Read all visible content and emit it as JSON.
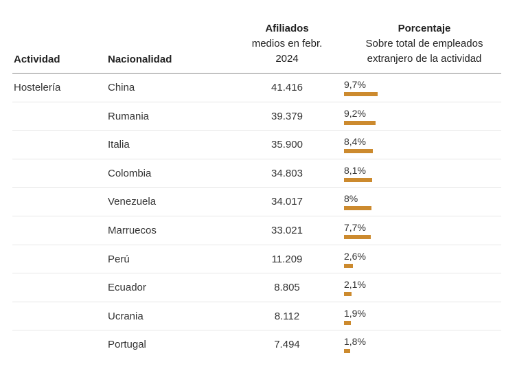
{
  "headers": {
    "actividad": "Actividad",
    "nacionalidad": "Nacionalidad",
    "afiliados_title": "Afiliados",
    "afiliados_line2": "medios en febr.",
    "afiliados_line3": "2024",
    "porcentaje_title": "Porcentaje",
    "porcentaje_line2": "Sobre total de empleados",
    "porcentaje_line3": "extranjero de la actividad"
  },
  "colors": {
    "bar": "#cc8a2e",
    "header_rule": "#8a8a8a",
    "row_rule": "#e6e6e6"
  },
  "chart_data": {
    "type": "table",
    "columns": [
      "Actividad",
      "Nacionalidad",
      "Afiliados medios en febr. 2024",
      "Porcentaje Sobre total de empleados extranjero de la actividad"
    ],
    "rows": [
      {
        "actividad": "Hostelería",
        "nacionalidad": "China",
        "afiliados": "41.416",
        "porcentaje": "9,7%",
        "value": 9.7
      },
      {
        "actividad": "",
        "nacionalidad": "Rumania",
        "afiliados": "39.379",
        "porcentaje": "9,2%",
        "value": 9.2
      },
      {
        "actividad": "",
        "nacionalidad": "Italia",
        "afiliados": "35.900",
        "porcentaje": "8,4%",
        "value": 8.4
      },
      {
        "actividad": "",
        "nacionalidad": "Colombia",
        "afiliados": "34.803",
        "porcentaje": "8,1%",
        "value": 8.1
      },
      {
        "actividad": "",
        "nacionalidad": "Venezuela",
        "afiliados": "34.017",
        "porcentaje": "8%",
        "value": 8.0
      },
      {
        "actividad": "",
        "nacionalidad": "Marruecos",
        "afiliados": "33.021",
        "porcentaje": "7,7%",
        "value": 7.7
      },
      {
        "actividad": "",
        "nacionalidad": "Perú",
        "afiliados": "11.209",
        "porcentaje": "2,6%",
        "value": 2.6
      },
      {
        "actividad": "",
        "nacionalidad": "Ecuador",
        "afiliados": "8.805",
        "porcentaje": "2,1%",
        "value": 2.1
      },
      {
        "actividad": "",
        "nacionalidad": "Ucrania",
        "afiliados": "8.112",
        "porcentaje": "1,9%",
        "value": 1.9
      },
      {
        "actividad": "",
        "nacionalidad": "Portugal",
        "afiliados": "7.494",
        "porcentaje": "1,8%",
        "value": 1.8
      }
    ]
  }
}
